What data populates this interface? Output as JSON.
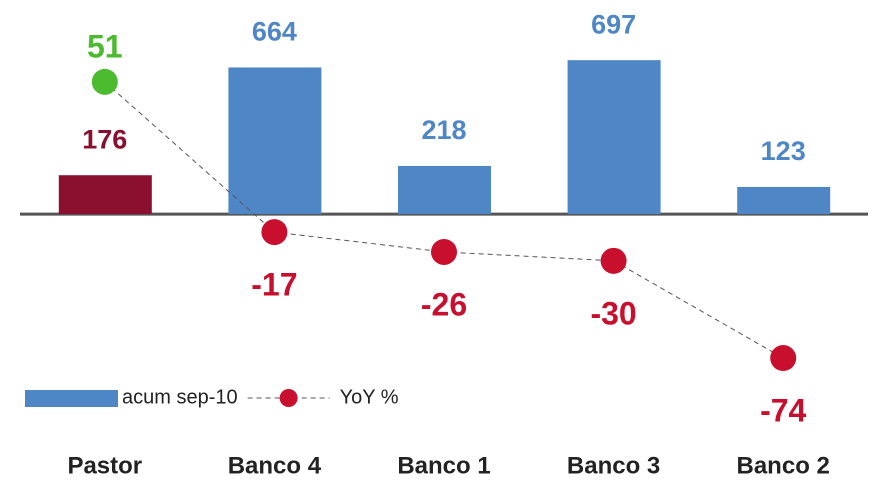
{
  "chart_data": {
    "type": "bar_line",
    "categories": [
      "Pastor",
      "Banco 4",
      "Banco 1",
      "Banco 3",
      "Banco 2"
    ],
    "series": [
      {
        "name": "acum sep-10",
        "type": "bar",
        "color": "#4f86c6",
        "colors": [
          "#8b0f2e",
          "#4f86c6",
          "#4f86c6",
          "#4f86c6",
          "#4f86c6"
        ],
        "values": [
          176,
          664,
          218,
          697,
          123
        ]
      },
      {
        "name": "YoY %",
        "type": "line",
        "axis": "y2",
        "color": "#c8102e",
        "colors": [
          "#4dbb2f",
          "#c8102e",
          "#c8102e",
          "#c8102e",
          "#c8102e"
        ],
        "values": [
          51,
          -17,
          -26,
          -30,
          -74
        ]
      }
    ],
    "ylim": [
      -842,
      879
    ],
    "y2lim": [
      -93,
      79
    ],
    "legend": "bottom-left"
  }
}
